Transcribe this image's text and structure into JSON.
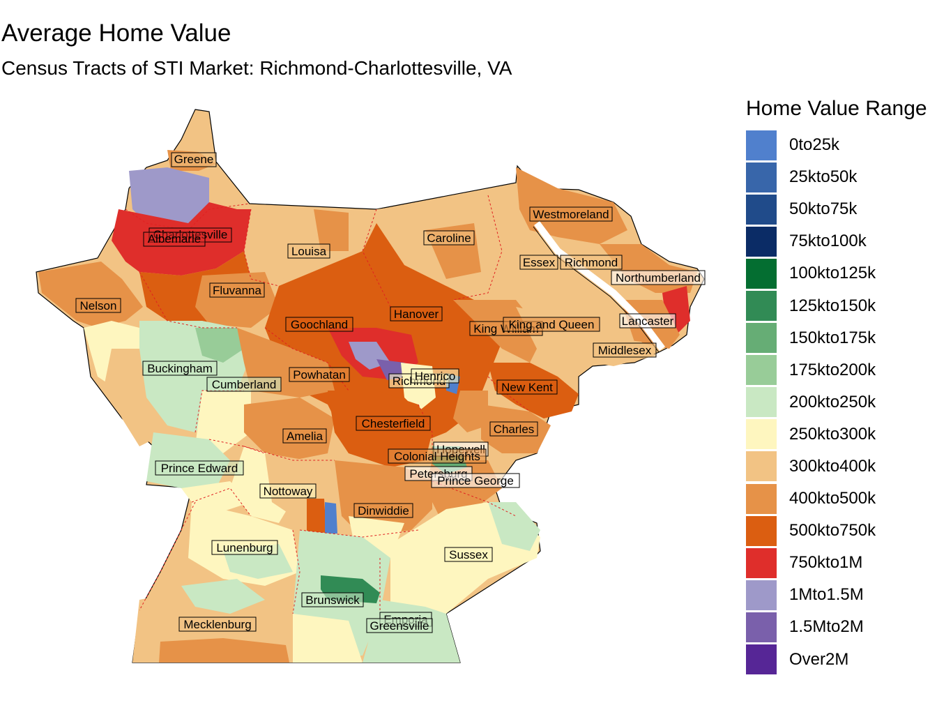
{
  "title": "Average Home Value",
  "subtitle": "Census Tracts of STI Market: Richmond-Charlottesville, VA",
  "legend": {
    "title": "Home Value Range",
    "items": [
      {
        "label": "0to25k",
        "color": "#5080cd"
      },
      {
        "label": "25kto50k",
        "color": "#3866aa"
      },
      {
        "label": "50kto75k",
        "color": "#204b8a"
      },
      {
        "label": "75kto100k",
        "color": "#0b2c66"
      },
      {
        "label": "100kto125k",
        "color": "#046e31"
      },
      {
        "label": "125kto150k",
        "color": "#318b55"
      },
      {
        "label": "150kto175k",
        "color": "#66ad75"
      },
      {
        "label": "175kto200k",
        "color": "#98cc98"
      },
      {
        "label": "200kto250k",
        "color": "#c9e8c3"
      },
      {
        "label": "250kto300k",
        "color": "#fef6bf"
      },
      {
        "label": "300kto400k",
        "color": "#f2c384"
      },
      {
        "label": "400kto500k",
        "color": "#e69248"
      },
      {
        "label": "500kto750k",
        "color": "#db5e11"
      },
      {
        "label": "750kto1M",
        "color": "#df2e2b"
      },
      {
        "label": "1Mto1.5M",
        "color": "#9e99c9"
      },
      {
        "label": "1.5Mto2M",
        "color": "#7a60ab"
      },
      {
        "label": "Over2M",
        "color": "#562696"
      }
    ]
  },
  "counties": [
    "Greene",
    "Charlottesville",
    "Albemarle",
    "Louisa",
    "Caroline",
    "Westmoreland",
    "Essex",
    "Richmond",
    "Northumberland",
    "Fluvanna",
    "Nelson",
    "Goochland",
    "Hanover",
    "King William",
    "King and Queen",
    "Lancaster",
    "Middlesex",
    "Buckingham",
    "Cumberland",
    "Powhatan",
    "Richmond",
    "Henrico",
    "New Kent",
    "Chesterfield",
    "Charles",
    "Amelia",
    "Hopewell",
    "Colonial Heights",
    "Prince Edward",
    "Petersburg",
    "Prince George",
    "Nottoway",
    "Dinwiddie",
    "Lunenburg",
    "Sussex",
    "Brunswick",
    "Emporia",
    "Mecklenburg",
    "Greensville"
  ]
}
